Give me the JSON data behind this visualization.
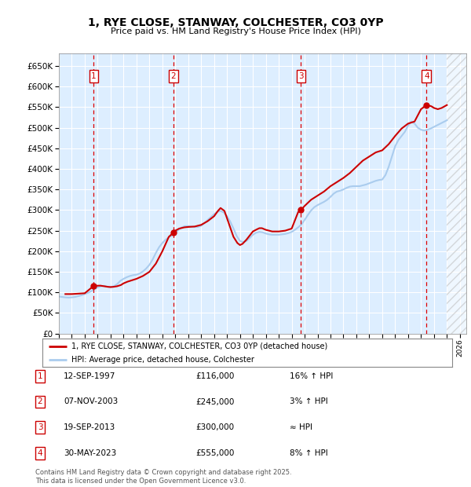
{
  "title": "1, RYE CLOSE, STANWAY, COLCHESTER, CO3 0YP",
  "subtitle": "Price paid vs. HM Land Registry's House Price Index (HPI)",
  "ylim": [
    0,
    680000
  ],
  "yticks": [
    0,
    50000,
    100000,
    150000,
    200000,
    250000,
    300000,
    350000,
    400000,
    450000,
    500000,
    550000,
    600000,
    650000
  ],
  "xlim": [
    1995.0,
    2026.5
  ],
  "background_color": "#ffffff",
  "plot_bg_color": "#ddeeff",
  "grid_color": "#ffffff",
  "transactions": [
    {
      "num": 1,
      "date": "12-SEP-1997",
      "price": 116000,
      "year": 1997.7,
      "label": "16% ↑ HPI"
    },
    {
      "num": 2,
      "date": "07-NOV-2003",
      "price": 245000,
      "year": 2003.85,
      "label": "3% ↑ HPI"
    },
    {
      "num": 3,
      "date": "19-SEP-2013",
      "price": 300000,
      "year": 2013.72,
      "label": "≈ HPI"
    },
    {
      "num": 4,
      "date": "30-MAY-2023",
      "price": 555000,
      "year": 2023.42,
      "label": "8% ↑ HPI"
    }
  ],
  "hpi_line_color": "#aaccee",
  "price_line_color": "#cc0000",
  "vline_color": "#dd0000",
  "transaction_dot_color": "#cc0000",
  "legend_label_price": "1, RYE CLOSE, STANWAY, COLCHESTER, CO3 0YP (detached house)",
  "legend_label_hpi": "HPI: Average price, detached house, Colchester",
  "footer": "Contains HM Land Registry data © Crown copyright and database right 2025.\nThis data is licensed under the Open Government Licence v3.0.",
  "hpi_data": {
    "years": [
      1995.0,
      1995.25,
      1995.5,
      1995.75,
      1996.0,
      1996.25,
      1996.5,
      1996.75,
      1997.0,
      1997.25,
      1997.5,
      1997.75,
      1998.0,
      1998.25,
      1998.5,
      1998.75,
      1999.0,
      1999.25,
      1999.5,
      1999.75,
      2000.0,
      2000.25,
      2000.5,
      2000.75,
      2001.0,
      2001.25,
      2001.5,
      2001.75,
      2002.0,
      2002.25,
      2002.5,
      2002.75,
      2003.0,
      2003.25,
      2003.5,
      2003.75,
      2004.0,
      2004.25,
      2004.5,
      2004.75,
      2005.0,
      2005.25,
      2005.5,
      2005.75,
      2006.0,
      2006.25,
      2006.5,
      2006.75,
      2007.0,
      2007.25,
      2007.5,
      2007.75,
      2008.0,
      2008.25,
      2008.5,
      2008.75,
      2009.0,
      2009.25,
      2009.5,
      2009.75,
      2010.0,
      2010.25,
      2010.5,
      2010.75,
      2011.0,
      2011.25,
      2011.5,
      2011.75,
      2012.0,
      2012.25,
      2012.5,
      2012.75,
      2013.0,
      2013.25,
      2013.5,
      2013.75,
      2014.0,
      2014.25,
      2014.5,
      2014.75,
      2015.0,
      2015.25,
      2015.5,
      2015.75,
      2016.0,
      2016.25,
      2016.5,
      2016.75,
      2017.0,
      2017.25,
      2017.5,
      2017.75,
      2018.0,
      2018.25,
      2018.5,
      2018.75,
      2019.0,
      2019.25,
      2019.5,
      2019.75,
      2020.0,
      2020.25,
      2020.5,
      2020.75,
      2021.0,
      2021.25,
      2021.5,
      2021.75,
      2022.0,
      2022.25,
      2022.5,
      2022.75,
      2023.0,
      2023.25,
      2023.5,
      2023.75,
      2024.0,
      2024.25,
      2024.5,
      2024.75,
      2025.0
    ],
    "values": [
      90000,
      89000,
      88000,
      87500,
      88000,
      89000,
      91000,
      93000,
      96000,
      99000,
      103000,
      108000,
      112000,
      115000,
      116000,
      114000,
      113000,
      115000,
      120000,
      128000,
      133000,
      137000,
      140000,
      142000,
      143000,
      146000,
      151000,
      158000,
      167000,
      180000,
      196000,
      210000,
      220000,
      228000,
      234000,
      238000,
      245000,
      252000,
      258000,
      261000,
      261000,
      260000,
      259000,
      259000,
      262000,
      268000,
      276000,
      283000,
      290000,
      296000,
      298000,
      294000,
      285000,
      272000,
      255000,
      237000,
      225000,
      222000,
      225000,
      232000,
      240000,
      245000,
      247000,
      246000,
      243000,
      241000,
      240000,
      240000,
      240000,
      241000,
      242000,
      244000,
      247000,
      252000,
      258000,
      265000,
      276000,
      288000,
      299000,
      307000,
      312000,
      316000,
      320000,
      325000,
      332000,
      340000,
      345000,
      347000,
      350000,
      354000,
      357000,
      358000,
      358000,
      358000,
      360000,
      362000,
      365000,
      368000,
      371000,
      373000,
      374000,
      385000,
      405000,
      430000,
      455000,
      470000,
      480000,
      490000,
      505000,
      515000,
      510000,
      500000,
      495000,
      493000,
      495000,
      498000,
      502000,
      506000,
      510000,
      514000,
      518000
    ]
  },
  "price_data": {
    "years": [
      1995.5,
      1996.0,
      1996.5,
      1997.0,
      1997.7,
      1998.2,
      1998.5,
      1998.8,
      1999.0,
      1999.2,
      1999.5,
      1999.8,
      2000.0,
      2000.3,
      2000.7,
      2001.0,
      2001.5,
      2002.0,
      2002.5,
      2003.0,
      2003.5,
      2003.85,
      2004.0,
      2004.3,
      2004.7,
      2005.0,
      2005.5,
      2006.0,
      2006.5,
      2007.0,
      2007.3,
      2007.5,
      2007.8,
      2008.0,
      2008.5,
      2008.8,
      2009.0,
      2009.2,
      2009.5,
      2009.8,
      2010.0,
      2010.3,
      2010.5,
      2010.7,
      2011.0,
      2011.5,
      2012.0,
      2012.5,
      2013.0,
      2013.5,
      2013.72,
      2014.0,
      2014.5,
      2015.0,
      2015.5,
      2016.0,
      2016.5,
      2017.0,
      2017.5,
      2018.0,
      2018.5,
      2019.0,
      2019.5,
      2020.0,
      2020.5,
      2021.0,
      2021.5,
      2022.0,
      2022.5,
      2023.0,
      2023.42,
      2023.8,
      2024.0,
      2024.3,
      2024.6,
      2025.0
    ],
    "values": [
      96000,
      96000,
      97000,
      98000,
      116000,
      116500,
      115000,
      113500,
      113000,
      113500,
      115000,
      118000,
      122000,
      126000,
      130000,
      133000,
      140000,
      150000,
      170000,
      200000,
      235000,
      245000,
      250000,
      255000,
      258000,
      259000,
      260000,
      264000,
      273000,
      285000,
      298000,
      305000,
      298000,
      280000,
      235000,
      220000,
      215000,
      218000,
      228000,
      240000,
      248000,
      253000,
      256000,
      256000,
      252000,
      248000,
      248000,
      250000,
      255000,
      295000,
      300000,
      310000,
      325000,
      335000,
      345000,
      358000,
      368000,
      378000,
      390000,
      405000,
      420000,
      430000,
      440000,
      445000,
      460000,
      480000,
      498000,
      510000,
      515000,
      545000,
      555000,
      552000,
      548000,
      545000,
      548000,
      555000
    ]
  }
}
